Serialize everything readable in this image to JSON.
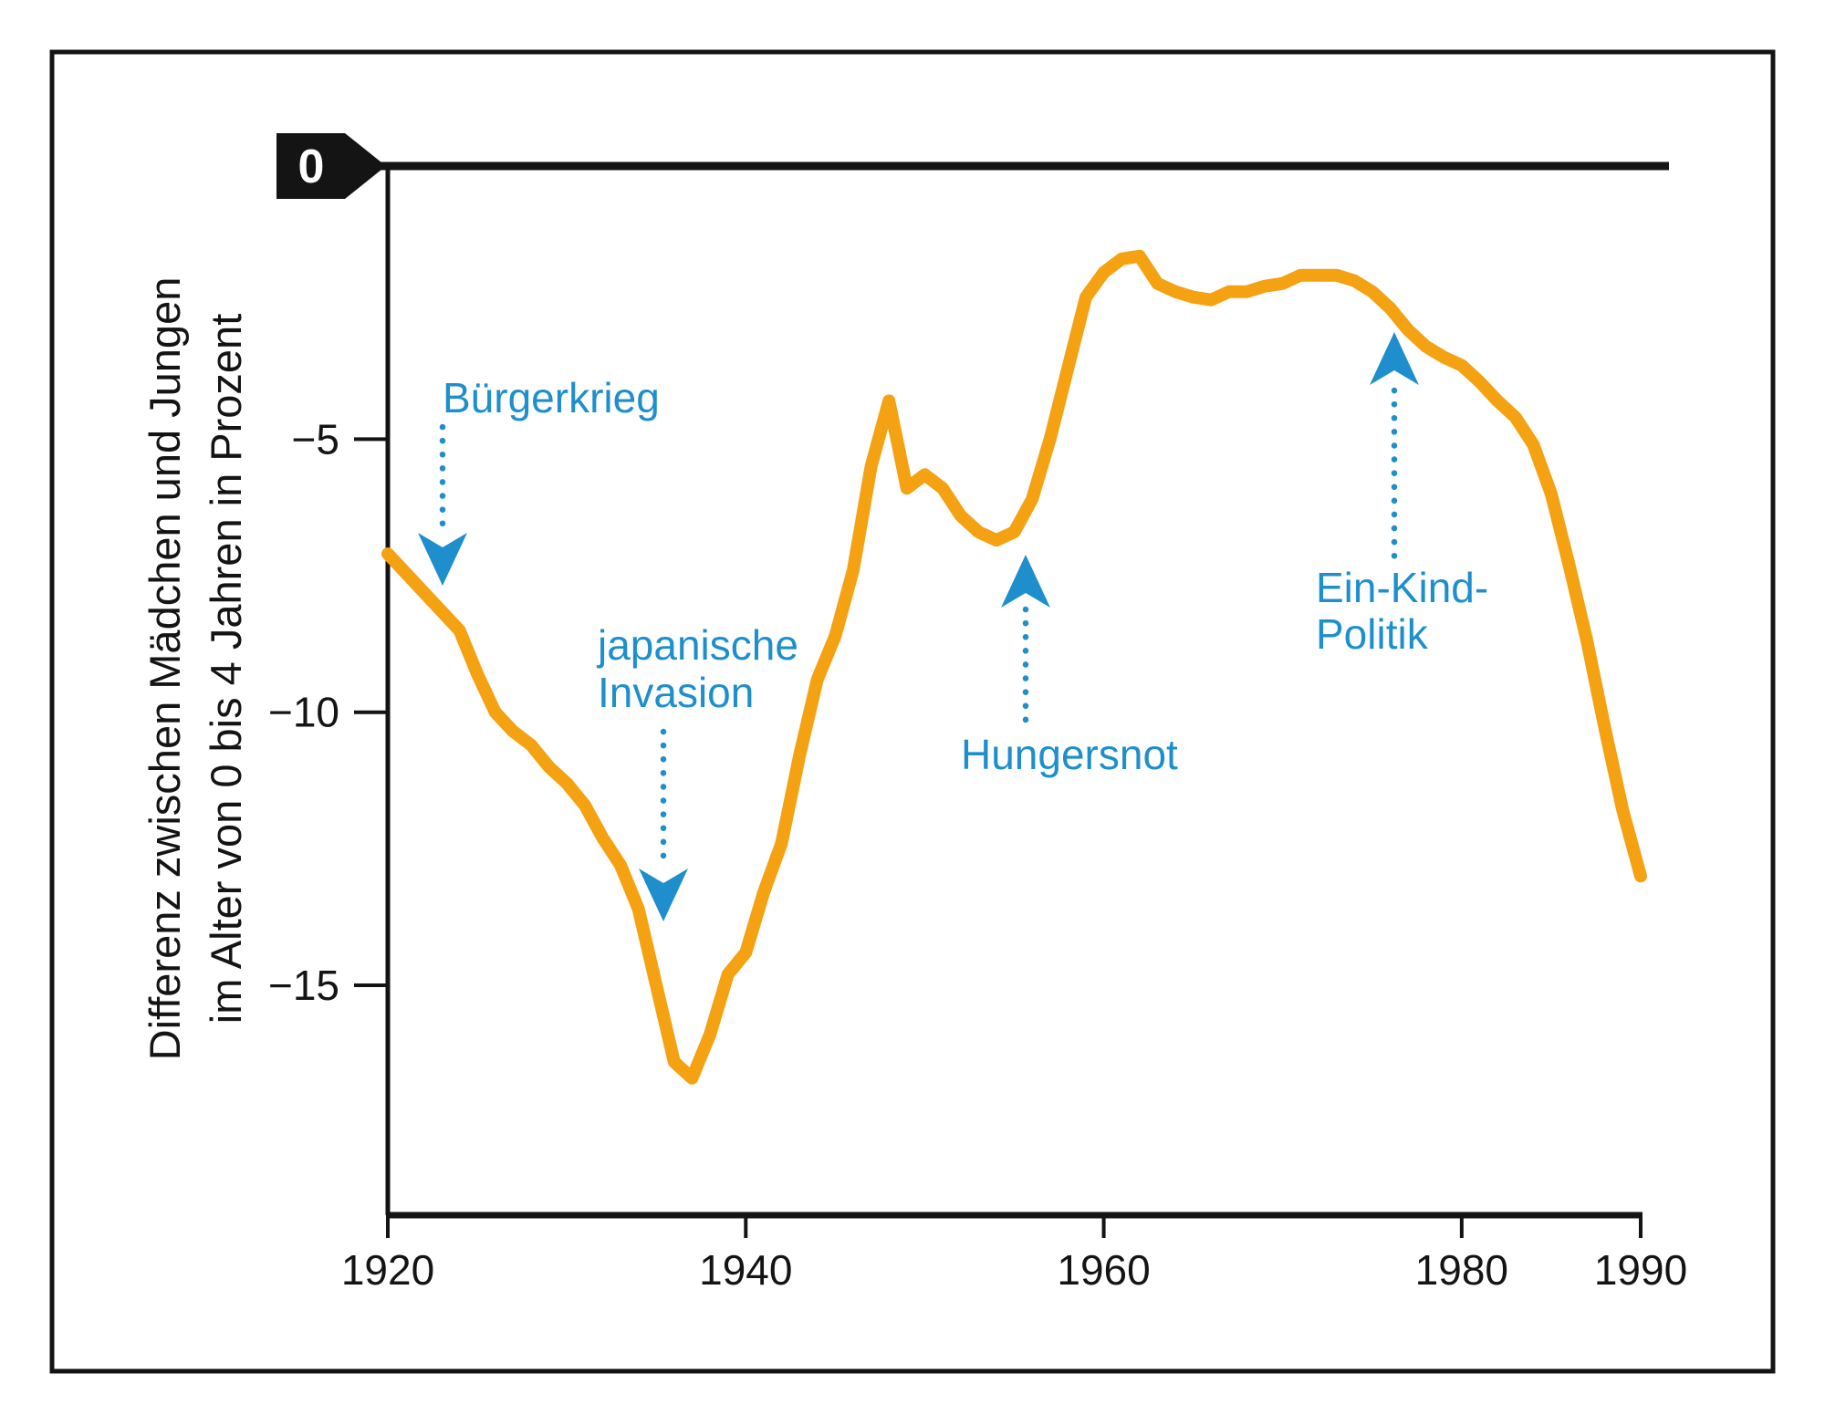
{
  "colors": {
    "line": "#F4A112",
    "annotation_blue": "#1E8FCC",
    "axis_black": "#141414",
    "zero_tag_bg": "#141414",
    "zero_tag_text": "#ffffff",
    "background": "#ffffff"
  },
  "y_axis": {
    "title_line1": "Differenz zwischen Mädchen und Jungen",
    "title_line2": "im Alter von 0 bis 4 Jahren in Prozent",
    "zero_label": "0",
    "tick_labels": [
      "−5",
      "−10",
      "−15"
    ],
    "tick_values": [
      -5,
      -10,
      -15
    ]
  },
  "x_axis": {
    "tick_labels": [
      "1920",
      "1940",
      "1960",
      "1980",
      "1990"
    ],
    "tick_values": [
      1920,
      1940,
      1960,
      1980,
      1990
    ]
  },
  "annotations": [
    {
      "lines": [
        "Bürgerkrieg"
      ],
      "arrow_direction": "down"
    },
    {
      "lines": [
        "japanische",
        "Invasion"
      ],
      "arrow_direction": "down"
    },
    {
      "lines": [
        "Hungersnot"
      ],
      "arrow_direction": "up"
    },
    {
      "lines": [
        "Ein-Kind-",
        "Politik"
      ],
      "arrow_direction": "up"
    }
  ],
  "chart_data": {
    "type": "line",
    "title": "",
    "xlabel": "",
    "ylabel": "Differenz zwischen Mädchen und Jungen im Alter von 0 bis 4 Jahren in Prozent",
    "x_range": [
      1920,
      1990
    ],
    "ylim": [
      -18.5,
      0
    ],
    "grid": false,
    "legend_position": "none",
    "series_color": "#F4A112",
    "x": [
      1920,
      1921,
      1922,
      1923,
      1924,
      1925,
      1926,
      1927,
      1928,
      1929,
      1930,
      1931,
      1932,
      1933,
      1934,
      1935,
      1936,
      1937,
      1938,
      1939,
      1940,
      1941,
      1942,
      1943,
      1944,
      1945,
      1946,
      1947,
      1948,
      1949,
      1950,
      1951,
      1952,
      1953,
      1954,
      1955,
      1956,
      1957,
      1958,
      1959,
      1960,
      1961,
      1962,
      1963,
      1964,
      1965,
      1966,
      1967,
      1968,
      1969,
      1970,
      1971,
      1972,
      1973,
      1974,
      1975,
      1976,
      1977,
      1978,
      1979,
      1980,
      1981,
      1982,
      1983,
      1984,
      1985,
      1986,
      1987,
      1988,
      1989,
      1990
    ],
    "values": [
      -7.1,
      -7.45,
      -7.8,
      -8.15,
      -8.5,
      -9.3,
      -10.0,
      -10.35,
      -10.6,
      -11.0,
      -11.3,
      -11.7,
      -12.3,
      -12.8,
      -13.6,
      -15.0,
      -16.4,
      -16.7,
      -15.9,
      -14.8,
      -14.4,
      -13.3,
      -12.4,
      -10.8,
      -9.4,
      -8.6,
      -7.4,
      -5.5,
      -4.3,
      -5.9,
      -5.65,
      -5.9,
      -6.4,
      -6.7,
      -6.85,
      -6.7,
      -6.1,
      -5.0,
      -3.7,
      -2.4,
      -1.95,
      -1.7,
      -1.65,
      -2.15,
      -2.3,
      -2.4,
      -2.45,
      -2.3,
      -2.3,
      -2.2,
      -2.15,
      -2.0,
      -2.0,
      -2.0,
      -2.1,
      -2.3,
      -2.6,
      -3.0,
      -3.3,
      -3.5,
      -3.65,
      -3.95,
      -4.3,
      -4.6,
      -5.1,
      -6.0,
      -7.3,
      -8.7,
      -10.3,
      -11.8,
      -13.0
    ],
    "annotations": [
      {
        "label": "Bürgerkrieg",
        "near_x": 1923
      },
      {
        "label": "japanische Invasion",
        "near_x": 1936
      },
      {
        "label": "Hungersnot",
        "near_x": 1955
      },
      {
        "label": "Ein-Kind-Politik",
        "near_x": 1976
      }
    ]
  }
}
